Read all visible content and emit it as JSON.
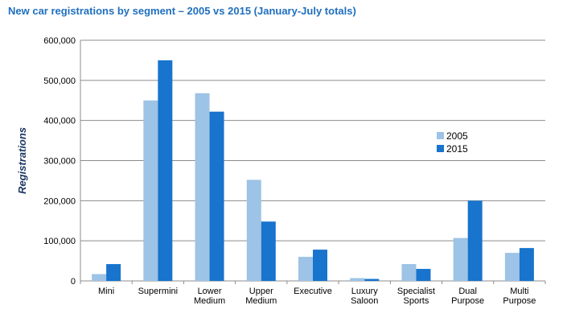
{
  "chart_data": {
    "type": "bar",
    "title": "New car registrations by segment – 2005 vs 2015 (January-July totals)",
    "xlabel": "",
    "ylabel": "Registrations",
    "ylim": [
      0,
      600000
    ],
    "yticks": [
      0,
      100000,
      200000,
      300000,
      400000,
      500000,
      600000
    ],
    "ytick_labels": [
      "0",
      "100,000",
      "200,000",
      "300,000",
      "400,000",
      "500,000",
      "600,000"
    ],
    "grid": true,
    "legend_position": "right",
    "categories": [
      [
        "Mini"
      ],
      [
        "Supermini"
      ],
      [
        "Lower",
        "Medium"
      ],
      [
        "Upper",
        "Medium"
      ],
      [
        "Executive"
      ],
      [
        "Luxury",
        "Saloon"
      ],
      [
        "Specialist",
        "Sports"
      ],
      [
        "Dual",
        "Purpose"
      ],
      [
        "Multi",
        "Purpose"
      ]
    ],
    "series": [
      {
        "name": "2005",
        "color": "#9dc3e6",
        "values": [
          17000,
          450000,
          468000,
          252000,
          60000,
          7000,
          42000,
          107000,
          70000
        ]
      },
      {
        "name": "2015",
        "color": "#1874cd",
        "values": [
          42000,
          550000,
          422000,
          148000,
          78000,
          5000,
          30000,
          200000,
          82000
        ]
      }
    ]
  }
}
